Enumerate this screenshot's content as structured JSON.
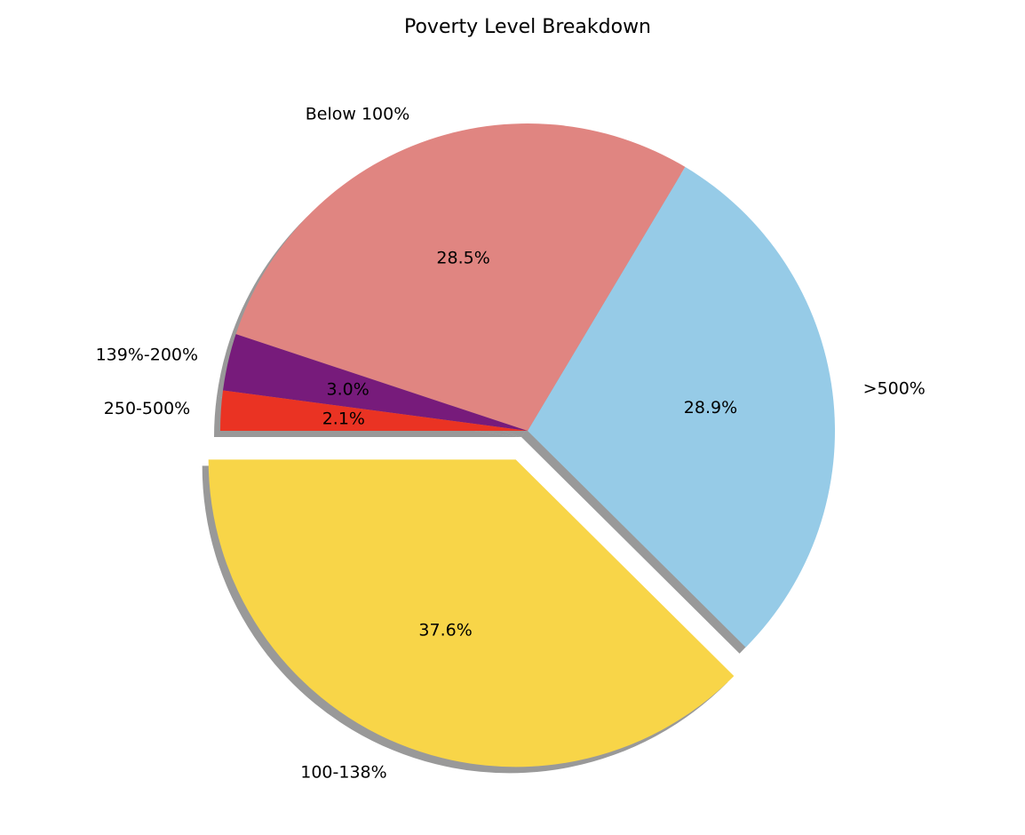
{
  "chart_data": {
    "type": "pie",
    "title": "Poverty Level Breakdown",
    "slices": [
      {
        "label": "100-138%",
        "value": 37.6,
        "pct_text": "37.6%",
        "color": "#F8D548",
        "explode": true
      },
      {
        "label": ">500%",
        "value": 28.9,
        "pct_text": "28.9%",
        "color": "#96CBE7",
        "explode": false
      },
      {
        "label": "Below 100%",
        "value": 28.5,
        "pct_text": "28.5%",
        "color": "#E08581",
        "explode": false
      },
      {
        "label": "139%-200%",
        "value": 3.0,
        "pct_text": "3.0%",
        "color": "#771B7B",
        "explode": false
      },
      {
        "label": "250-500%",
        "value": 2.1,
        "pct_text": "2.1%",
        "color": "#EA3323",
        "explode": false
      }
    ],
    "shadow": true,
    "start_angle": 180,
    "direction": "counterclockwise"
  }
}
